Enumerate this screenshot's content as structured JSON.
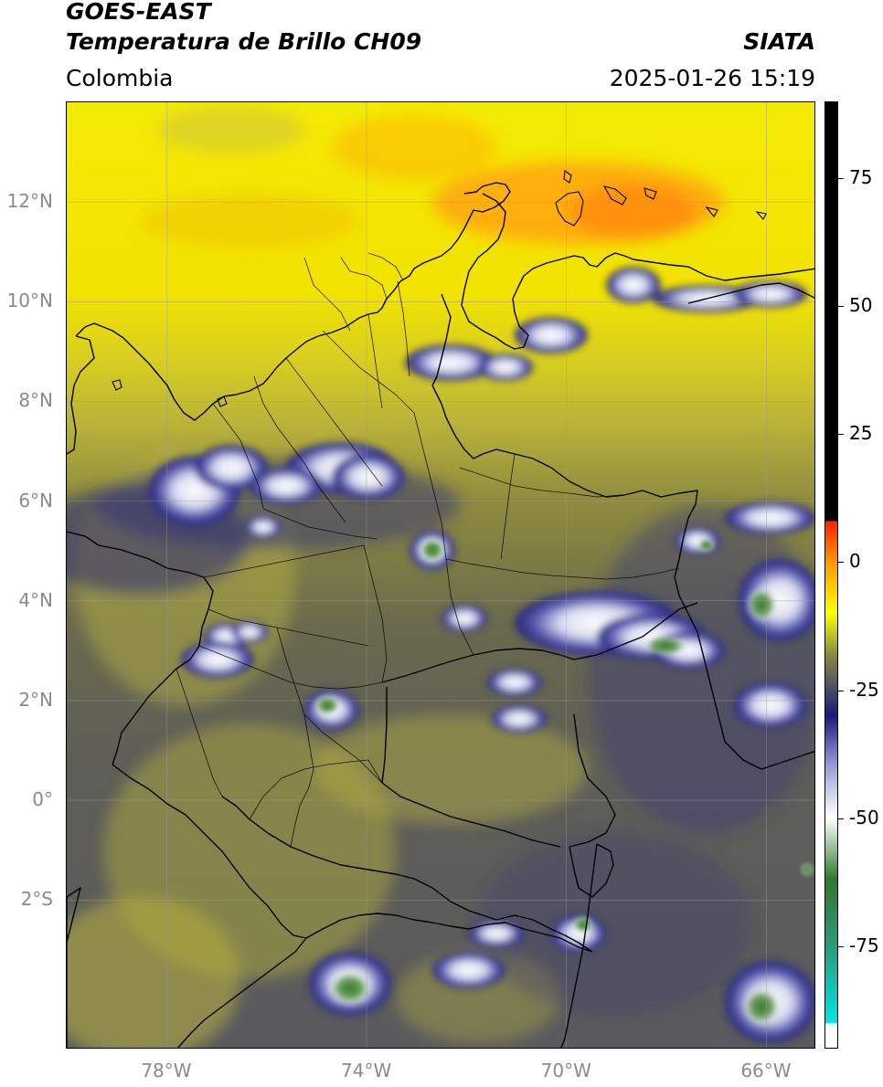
{
  "header": {
    "satellite": "GOES-EAST",
    "product": "Temperatura de Brillo CH09",
    "region": "Colombia",
    "agency": "SIATA",
    "datetime": "2025-01-26 15:19"
  },
  "map": {
    "lon_range": [
      -80,
      -65
    ],
    "lat_range": [
      -5,
      14
    ],
    "gridlines": true,
    "lat_ticks": [
      {
        "value": 12,
        "label": "12°N"
      },
      {
        "value": 10,
        "label": "10°N"
      },
      {
        "value": 8,
        "label": "8°N"
      },
      {
        "value": 6,
        "label": "6°N"
      },
      {
        "value": 4,
        "label": "4°N"
      },
      {
        "value": 2,
        "label": "2°N"
      },
      {
        "value": 0,
        "label": "0°"
      },
      {
        "value": -2,
        "label": "2°S"
      }
    ],
    "lon_ticks": [
      {
        "value": -78,
        "label": "78°W"
      },
      {
        "value": -74,
        "label": "74°W"
      },
      {
        "value": -70,
        "label": "70°W"
      },
      {
        "value": -66,
        "label": "66°W"
      }
    ]
  },
  "colorbar": {
    "range": [
      -95,
      90
    ],
    "ticks": [
      {
        "value": 75,
        "label": "75"
      },
      {
        "value": 50,
        "label": "50"
      },
      {
        "value": 25,
        "label": "25"
      },
      {
        "value": 0,
        "label": "0"
      },
      {
        "value": -25,
        "label": "-25"
      },
      {
        "value": -50,
        "label": "-50"
      },
      {
        "value": -75,
        "label": "-75"
      }
    ],
    "stops": [
      {
        "value": -95,
        "color": "#ffffff"
      },
      {
        "value": -90.5,
        "color": "#ffffff"
      },
      {
        "value": -90,
        "color": "#00e5e5"
      },
      {
        "value": -75,
        "color": "#2a9a7a"
      },
      {
        "value": -62,
        "color": "#2f7a2a"
      },
      {
        "value": -50,
        "color": "#ffffff"
      },
      {
        "value": -40,
        "color": "#9aa0d8"
      },
      {
        "value": -30,
        "color": "#1a1a80"
      },
      {
        "value": -25,
        "color": "#4a4a66"
      },
      {
        "value": -18,
        "color": "#8a8a40"
      },
      {
        "value": -10,
        "color": "#ffff00"
      },
      {
        "value": 0,
        "color": "#ff9900"
      },
      {
        "value": 8,
        "color": "#ff2200"
      },
      {
        "value": 8.1,
        "color": "#000000"
      },
      {
        "value": 90,
        "color": "#000000"
      }
    ]
  },
  "palette": {
    "yellow": "#f5e60a",
    "olive_light": "#b8b040",
    "olive": "#8c8a3a",
    "gray_blue": "#5a5a60",
    "navy": "#22227a",
    "cloud_white": "#e8e8f4",
    "green": "#4a8a40",
    "orange": "#ff9a10",
    "border": "#000000"
  }
}
